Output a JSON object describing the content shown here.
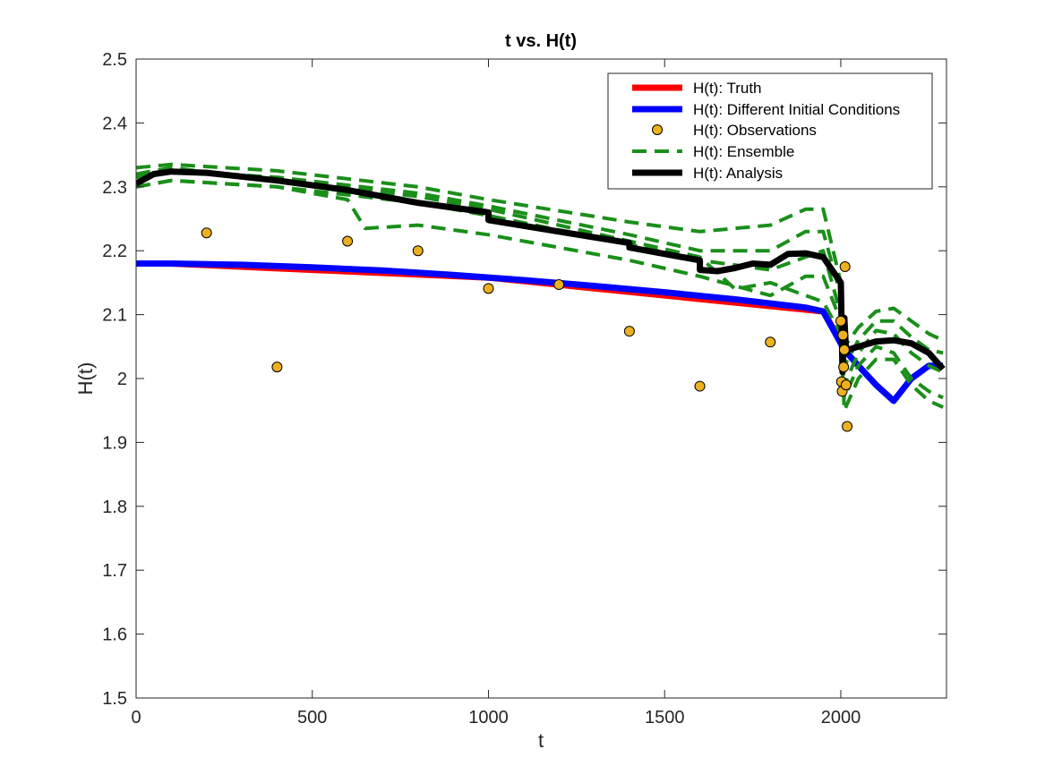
{
  "chart_data": {
    "type": "line",
    "title": "t vs. H(t)",
    "xlabel": "t",
    "ylabel": "H(t)",
    "xlim": [
      0,
      2300
    ],
    "ylim": [
      1.5,
      2.5
    ],
    "xticks": [
      0,
      500,
      1000,
      1500,
      2000
    ],
    "yticks": [
      1.5,
      1.6,
      1.7,
      1.8,
      1.9,
      2,
      2.1,
      2.2,
      2.3,
      2.4,
      2.5
    ],
    "xtick_labels": [
      "0",
      "500",
      "1000",
      "1500",
      "2000"
    ],
    "ytick_labels": [
      "1.5",
      "1.6",
      "1.7",
      "1.8",
      "1.9",
      "2",
      "2.1",
      "2.2",
      "2.3",
      "2.4",
      "2.5"
    ],
    "grid": false,
    "legend_position": "top-right",
    "series": [
      {
        "name": "H(t): Truth",
        "color": "#ff0000",
        "style": "solid",
        "x": [
          0,
          100,
          500,
          1000,
          1500,
          1950,
          2020
        ],
        "y": [
          2.18,
          2.18,
          2.17,
          2.158,
          2.13,
          2.105,
          2.04
        ]
      },
      {
        "name": "H(t): Different Initial Conditions",
        "color": "#0000ff",
        "style": "solid",
        "x": [
          0,
          100,
          300,
          500,
          700,
          900,
          1100,
          1300,
          1500,
          1700,
          1900,
          1950,
          1980,
          2010,
          2050,
          2100,
          2150,
          2200,
          2250,
          2290
        ],
        "y": [
          2.18,
          2.18,
          2.178,
          2.174,
          2.169,
          2.162,
          2.154,
          2.145,
          2.135,
          2.124,
          2.111,
          2.105,
          2.075,
          2.045,
          2.02,
          1.99,
          1.965,
          2.0,
          2.02,
          2.02
        ]
      },
      {
        "name": "H(t): Observations",
        "color": "#edb120",
        "style": "marker",
        "x": [
          200,
          400,
          600,
          800,
          1000,
          1200,
          1400,
          1600,
          1800,
          2000,
          2002,
          2004,
          2006,
          2008,
          2010,
          2012,
          2015,
          2018
        ],
        "y": [
          2.228,
          2.018,
          2.215,
          2.2,
          2.141,
          2.147,
          2.074,
          1.988,
          2.057,
          2.09,
          1.995,
          1.98,
          2.068,
          2.018,
          2.045,
          2.175,
          1.99,
          1.925
        ]
      },
      {
        "name": "H(t): Ensemble",
        "color": "#1a8f1a",
        "style": "dashed",
        "members": [
          {
            "x": [
              0,
              100,
              400,
              800,
              1000,
              1400,
              1600,
              1800,
              1900,
              1950,
              2000,
              2010,
              2050,
              2100,
              2150,
              2200,
              2250,
              2290
            ],
            "y": [
              2.33,
              2.335,
              2.325,
              2.3,
              2.28,
              2.245,
              2.23,
              2.24,
              2.265,
              2.265,
              2.15,
              2.05,
              2.08,
              2.105,
              2.11,
              2.09,
              2.07,
              2.06
            ]
          },
          {
            "x": [
              0,
              100,
              400,
              800,
              1000,
              1400,
              1600,
              1800,
              1900,
              1950,
              2000,
              2010,
              2050,
              2100,
              2150,
              2200,
              2250,
              2290
            ],
            "y": [
              2.315,
              2.325,
              2.315,
              2.29,
              2.27,
              2.225,
              2.2,
              2.2,
              2.23,
              2.23,
              2.13,
              2.02,
              2.06,
              2.09,
              2.09,
              2.065,
              2.045,
              2.04
            ]
          },
          {
            "x": [
              0,
              100,
              400,
              800,
              1000,
              1400,
              1600,
              1800,
              1900,
              1950,
              2000,
              2010,
              2050,
              2100,
              2150,
              2200,
              2250,
              2290
            ],
            "y": [
              2.3,
              2.31,
              2.3,
              2.275,
              2.255,
              2.21,
              2.185,
              2.17,
              2.19,
              2.2,
              2.1,
              1.99,
              2.04,
              2.075,
              2.07,
              2.04,
              2.02,
              2.01
            ]
          },
          {
            "x": [
              0,
              100,
              400,
              600,
              650,
              800,
              1000,
              1400,
              1600,
              1800,
              1900,
              1950,
              2000,
              2010,
              2050,
              2100,
              2150,
              2200,
              2250,
              2290
            ],
            "y": [
              2.3,
              2.31,
              2.3,
              2.28,
              2.235,
              2.24,
              2.225,
              2.185,
              2.16,
              2.13,
              2.16,
              2.16,
              2.09,
              1.97,
              2.02,
              2.05,
              2.04,
              2.0,
              1.98,
              1.97
            ]
          },
          {
            "x": [
              0,
              100,
              400,
              800,
              1000,
              1400,
              1600,
              1700,
              1800,
              1900,
              1950,
              2000,
              2010,
              2050,
              2100,
              2150,
              2200,
              2250,
              2290
            ],
            "y": [
              2.32,
              2.33,
              2.31,
              2.285,
              2.265,
              2.215,
              2.19,
              2.14,
              2.15,
              2.13,
              2.12,
              2.07,
              1.95,
              2.0,
              2.03,
              2.03,
              1.99,
              1.965,
              1.955
            ]
          }
        ]
      },
      {
        "name": "H(t): Analysis",
        "color": "#000000",
        "style": "solid",
        "x": [
          0,
          50,
          100,
          200,
          400,
          600,
          800,
          1000,
          1000,
          1200,
          1400,
          1400,
          1600,
          1600,
          1650,
          1700,
          1750,
          1800,
          1850,
          1900,
          1950,
          2000,
          2005,
          2010,
          2015,
          2020,
          2050,
          2100,
          2150,
          2200,
          2250,
          2290
        ],
        "y": [
          2.305,
          2.32,
          2.324,
          2.322,
          2.31,
          2.295,
          2.275,
          2.26,
          2.248,
          2.23,
          2.212,
          2.205,
          2.185,
          2.17,
          2.168,
          2.173,
          2.18,
          2.178,
          2.195,
          2.196,
          2.19,
          2.15,
          2.01,
          2.095,
          2.04,
          2.045,
          2.05,
          2.058,
          2.06,
          2.055,
          2.04,
          2.015
        ]
      }
    ]
  }
}
